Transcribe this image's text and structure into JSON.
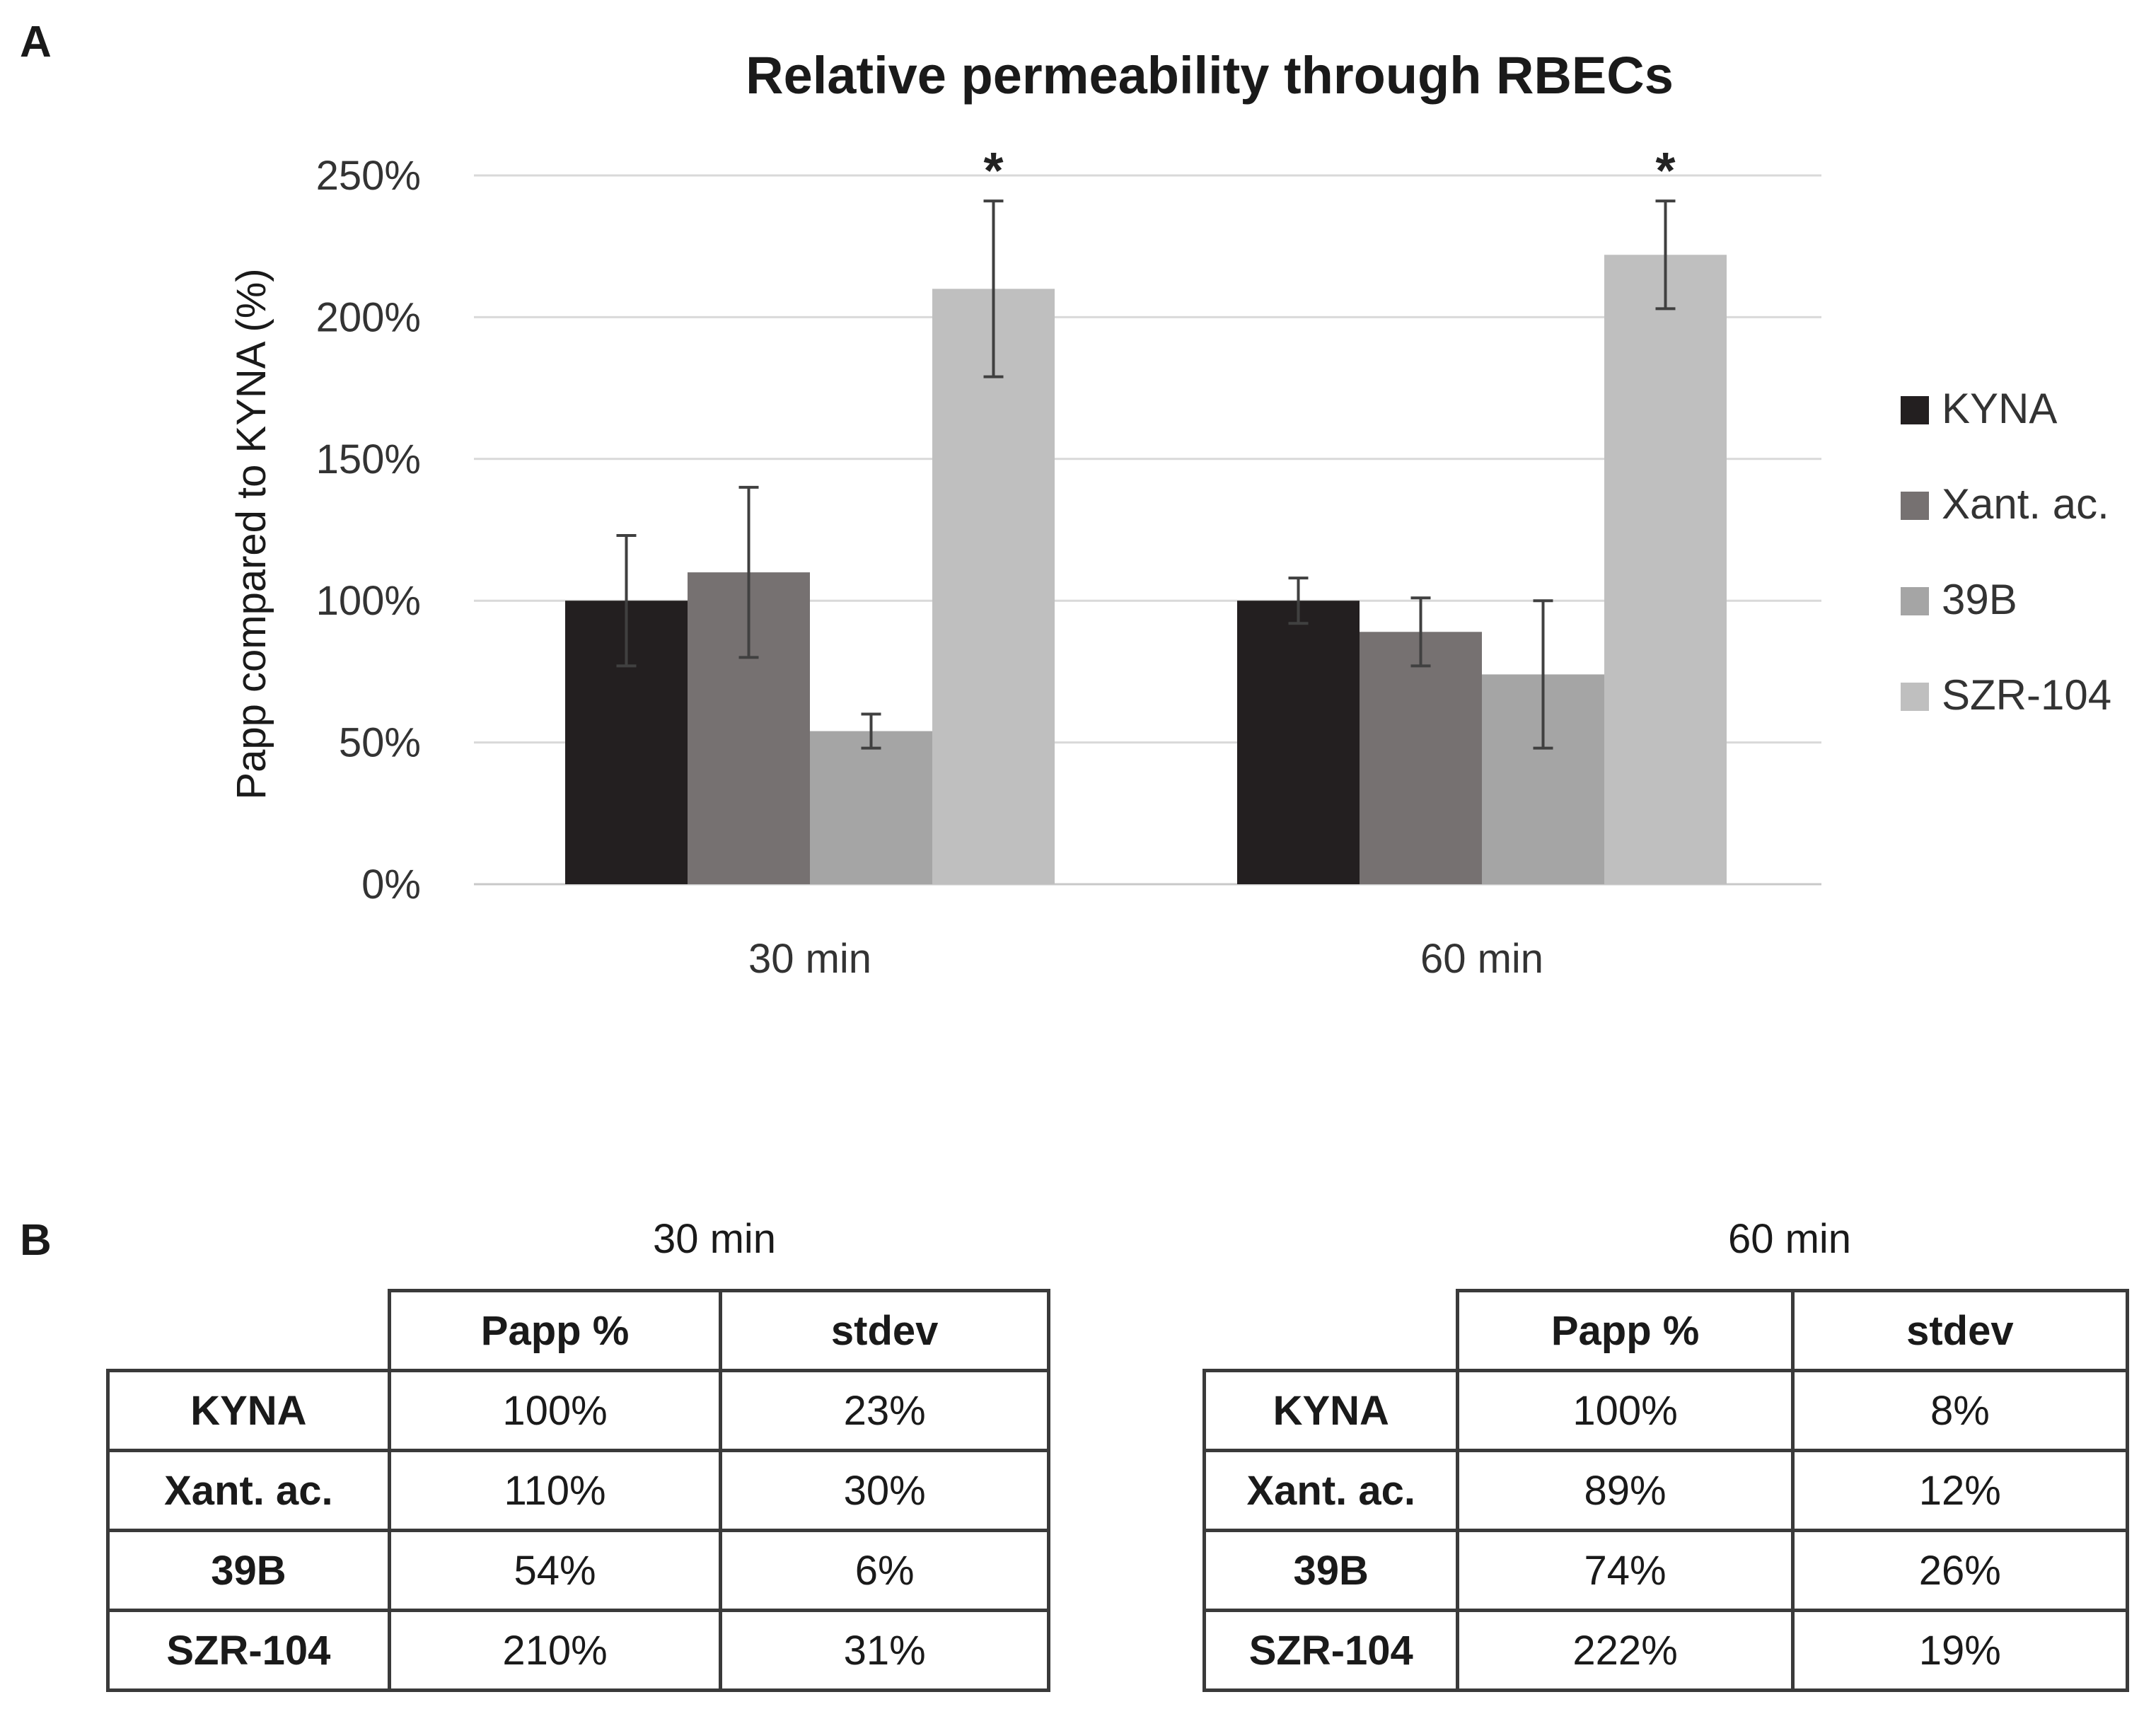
{
  "panel_a_label": "A",
  "panel_b_label": "B",
  "chart_data": {
    "type": "bar",
    "title": "Relative permeability through RBECs",
    "ylabel": "Papp compared to KYNA (%)",
    "xlabel": "",
    "categories": [
      "30 min",
      "60 min"
    ],
    "ylim": [
      0,
      250
    ],
    "yticks": [
      0,
      50,
      100,
      150,
      200,
      250
    ],
    "ytick_labels": [
      "0%",
      "50%",
      "100%",
      "150%",
      "200%",
      "250%"
    ],
    "grid": true,
    "legend_position": "right",
    "series": [
      {
        "name": "KYNA",
        "color": "#231f20",
        "values": [
          100,
          100
        ],
        "errors": [
          23,
          8
        ]
      },
      {
        "name": "Xant. ac.",
        "color": "#767171",
        "values": [
          110,
          89
        ],
        "errors": [
          30,
          12
        ]
      },
      {
        "name": "39B",
        "color": "#a5a5a5",
        "values": [
          54,
          74
        ],
        "errors": [
          6,
          26
        ]
      },
      {
        "name": "SZR-104",
        "color": "#bfbfbf",
        "values": [
          210,
          222
        ],
        "errors": [
          31,
          19
        ]
      }
    ],
    "annotations": [
      {
        "text": "*",
        "category": "30 min",
        "series": "SZR-104"
      },
      {
        "text": "*",
        "category": "60 min",
        "series": "SZR-104"
      }
    ]
  },
  "tables": [
    {
      "title": "30 min",
      "headers": [
        "Papp %",
        "stdev"
      ],
      "rows": [
        {
          "name": "KYNA",
          "papp": "100%",
          "stdev": "23%"
        },
        {
          "name": "Xant. ac.",
          "papp": "110%",
          "stdev": "30%"
        },
        {
          "name": "39B",
          "papp": "54%",
          "stdev": "6%"
        },
        {
          "name": "SZR-104",
          "papp": "210%",
          "stdev": "31%"
        }
      ]
    },
    {
      "title": "60 min",
      "headers": [
        "Papp %",
        "stdev"
      ],
      "rows": [
        {
          "name": "KYNA",
          "papp": "100%",
          "stdev": "8%"
        },
        {
          "name": "Xant. ac.",
          "papp": "89%",
          "stdev": "12%"
        },
        {
          "name": "39B",
          "papp": "74%",
          "stdev": "26%"
        },
        {
          "name": "SZR-104",
          "papp": "222%",
          "stdev": "19%"
        }
      ]
    }
  ]
}
